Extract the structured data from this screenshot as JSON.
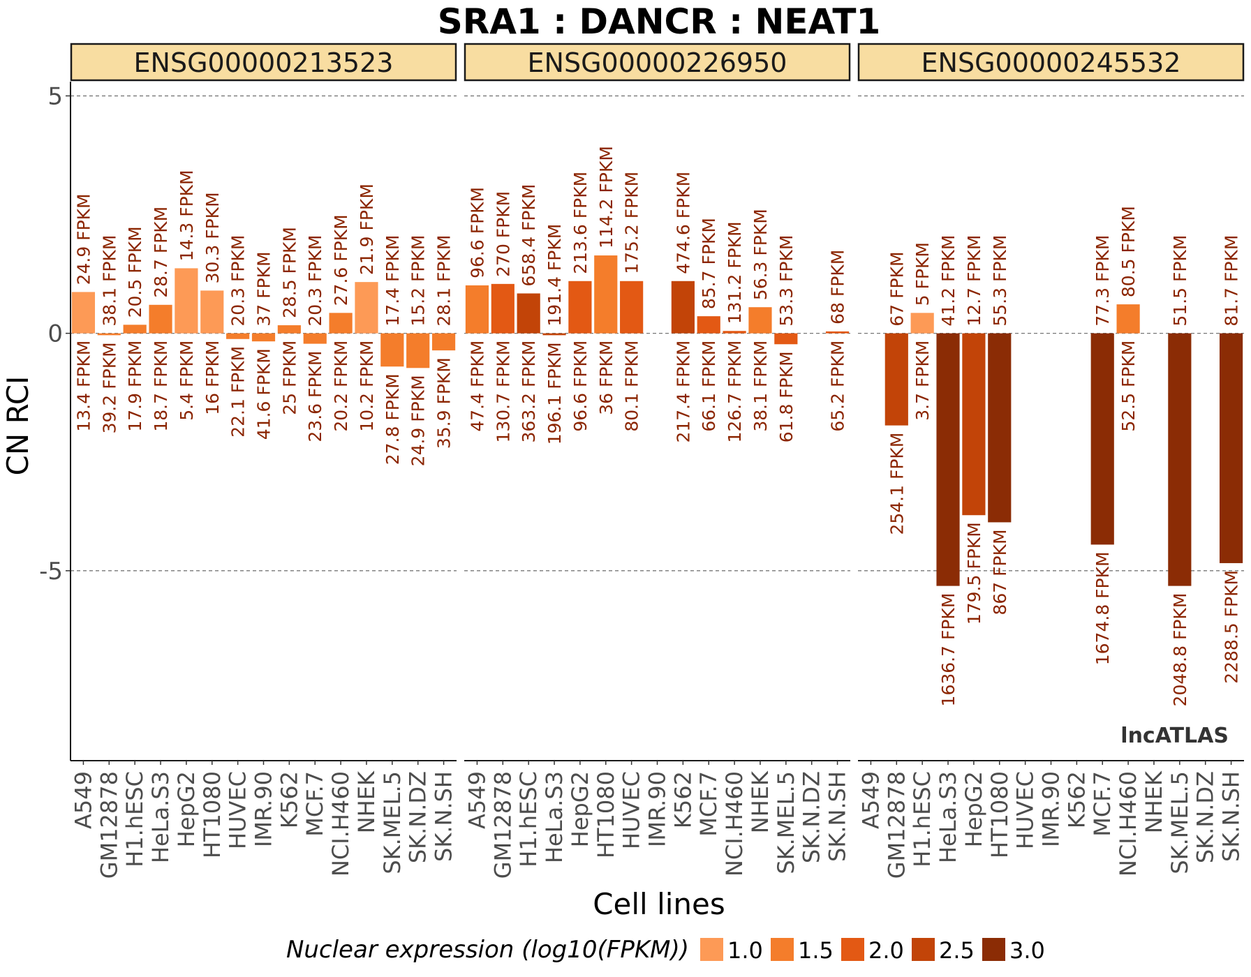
{
  "chart_data": {
    "type": "bar",
    "title": "SRA1 : DANCR : NEAT1",
    "xlabel": "Cell lines",
    "ylabel": "CN RCI",
    "ylim": [
      -9,
      5.3
    ],
    "y_ticks": [
      5,
      0,
      -5
    ],
    "grid": "dashed horizontal lines at 5, 0, -5",
    "legend_placement": "bottom",
    "watermark": "lncATLAS",
    "unit_suffix": "FPKM",
    "categories": [
      "A549",
      "GM12878",
      "H1.hESC",
      "HeLa.S3",
      "HepG2",
      "HT1080",
      "HUVEC",
      "IMR.90",
      "K562",
      "MCF.7",
      "NCI.H460",
      "NHEK",
      "SK.MEL.5",
      "SK.N.DZ",
      "SK.N.SH"
    ],
    "legend": {
      "title": "Nuclear expression (log10(FPKM))",
      "entries": [
        {
          "label": "1.0",
          "color": "#fd9a56"
        },
        {
          "label": "1.5",
          "color": "#f47d2b"
        },
        {
          "label": "2.0",
          "color": "#e35914"
        },
        {
          "label": "2.5",
          "color": "#c24408"
        },
        {
          "label": "3.0",
          "color": "#8b2c05"
        }
      ]
    },
    "panels": [
      {
        "gene": "ENSG00000213523",
        "values": [
          0.87,
          -0.04,
          0.18,
          0.6,
          1.37,
          0.9,
          -0.12,
          -0.17,
          0.17,
          -0.22,
          0.43,
          1.08,
          -0.7,
          -0.73,
          -0.36
        ],
        "cytoplasm_fpkm": [
          "24.9",
          "38.1",
          "20.5",
          "28.7",
          "14.3",
          "30.3",
          "20.3",
          "37",
          "28.5",
          "20.3",
          "27.6",
          "21.9",
          "17.4",
          "15.2",
          "28.1"
        ],
        "nucleus_fpkm": [
          "13.4",
          "39.2",
          "17.9",
          "18.7",
          "5.4",
          "16",
          "22.1",
          "41.6",
          "25",
          "23.6",
          "20.2",
          "10.2",
          "27.8",
          "24.9",
          "35.9"
        ]
      },
      {
        "gene": "ENSG00000226950",
        "values": [
          1.01,
          1.04,
          0.84,
          -0.04,
          1.1,
          1.64,
          1.1,
          null,
          1.1,
          0.36,
          0.05,
          0.55,
          -0.23,
          null,
          0.04
        ],
        "cytoplasm_fpkm": [
          "96.6",
          "270",
          "658.4",
          "191.4",
          "213.6",
          "114.2",
          "175.2",
          null,
          "474.6",
          "85.7",
          "131.2",
          "56.3",
          "53.3",
          null,
          "68"
        ],
        "nucleus_fpkm": [
          "47.4",
          "130.7",
          "363.2",
          "196.1",
          "96.6",
          "36",
          "80.1",
          null,
          "217.4",
          "66.1",
          "126.7",
          "38.1",
          "61.8",
          null,
          "65.2"
        ]
      },
      {
        "gene": "ENSG00000245532",
        "values": [
          null,
          -1.94,
          0.43,
          -5.32,
          -3.83,
          -3.98,
          null,
          null,
          null,
          -4.45,
          0.61,
          null,
          -5.32,
          null,
          -4.84
        ],
        "cytoplasm_fpkm": [
          null,
          "67",
          "5",
          "41.2",
          "12.7",
          "55.3",
          null,
          null,
          null,
          "77.3",
          "80.5",
          null,
          "51.5",
          null,
          "81.7"
        ],
        "nucleus_fpkm": [
          null,
          "254.1",
          "3.7",
          "1636.7",
          "179.5",
          "867",
          null,
          null,
          null,
          "1674.8",
          "52.5",
          null,
          "2048.8",
          null,
          "2288.5"
        ]
      }
    ]
  }
}
